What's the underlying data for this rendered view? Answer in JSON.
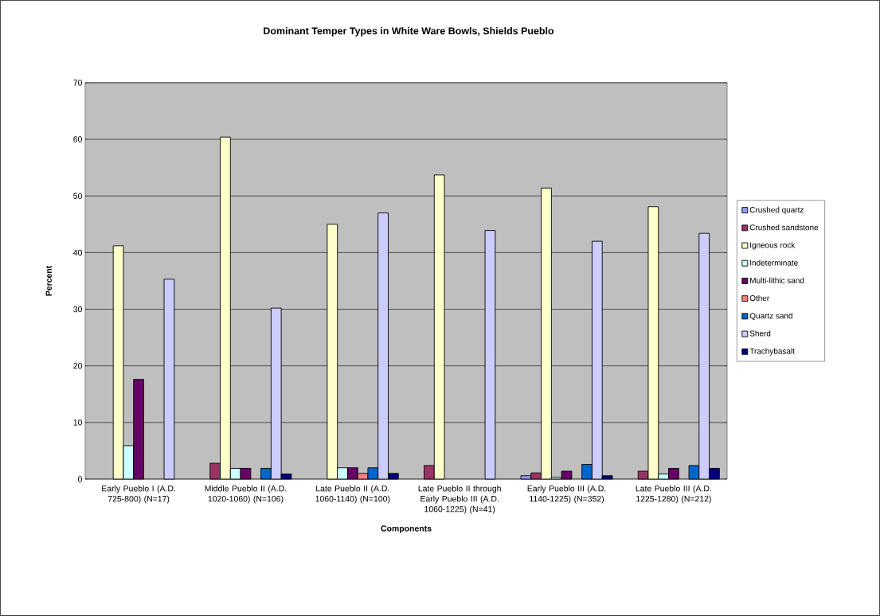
{
  "chart_data": {
    "type": "bar",
    "title": "Dominant  Temper Types in White Ware Bowls, Shields Pueblo",
    "xlabel": "Components",
    "ylabel": "Percent",
    "categories": [
      "Early Pueblo I (A.D. 725-800) (N=17)",
      "Middle Pueblo II (A.D. 1020-1060) (N=106)",
      "Late Pueblo II (A.D. 1060-1140) (N=100)",
      "Late Pueblo II through Early Pueblo III (A.D. 1060-1225) (N=41)",
      "Early Pueblo III (A.D. 1140-1225) (N=352)",
      "Late Pueblo III (A.D. 1225-1280) (N=212)"
    ],
    "series": [
      {
        "name": "Crushed quartz",
        "color": "#9999ff",
        "values": [
          null,
          null,
          null,
          null,
          0.6,
          null
        ]
      },
      {
        "name": "Crushed sandstone",
        "color": "#993366",
        "values": [
          null,
          2.8,
          null,
          2.4,
          1.1,
          1.4
        ]
      },
      {
        "name": "Igneous rock",
        "color": "#ffffcc",
        "values": [
          41.2,
          60.4,
          45,
          53.7,
          51.4,
          48.1
        ]
      },
      {
        "name": "Indeterminate",
        "color": "#ccffff",
        "values": [
          5.9,
          1.9,
          2,
          null,
          0.3,
          0.9
        ]
      },
      {
        "name": "Multi-lithic sand",
        "color": "#660066",
        "values": [
          17.6,
          1.9,
          2,
          null,
          1.4,
          1.9
        ]
      },
      {
        "name": "Other",
        "color": "#ff8080",
        "values": [
          null,
          null,
          1,
          null,
          null,
          null
        ]
      },
      {
        "name": "Quartz sand",
        "color": "#0066cc",
        "values": [
          null,
          1.9,
          2,
          null,
          2.6,
          2.4
        ]
      },
      {
        "name": "Sherd",
        "color": "#ccccff",
        "values": [
          35.3,
          30.2,
          47,
          43.9,
          42.0,
          43.4
        ]
      },
      {
        "name": "Trachybasalt",
        "color": "#000080",
        "values": [
          null,
          0.9,
          1,
          null,
          0.6,
          1.9
        ]
      }
    ],
    "ylim": [
      0,
      70
    ],
    "yticks": [
      0,
      10,
      20,
      30,
      40,
      50,
      60,
      70
    ],
    "grid": "y",
    "legend": "right"
  }
}
